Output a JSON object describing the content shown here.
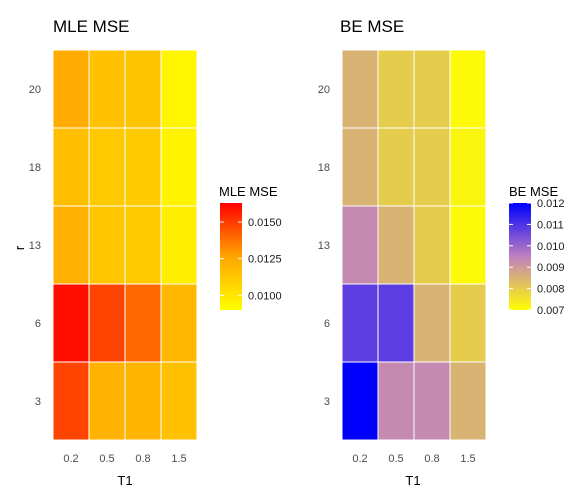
{
  "chart_data": [
    {
      "type": "heatmap",
      "title": "MLE MSE",
      "xlabel": "T1",
      "ylabel": "r",
      "x_categories": [
        "0.2",
        "0.5",
        "0.8",
        "1.5"
      ],
      "y_categories": [
        "3",
        "6",
        "13",
        "18",
        "20"
      ],
      "values": [
        [
          0.0148,
          0.0121,
          0.012,
          0.0115
        ],
        [
          0.016,
          0.0148,
          0.014,
          0.0119
        ],
        [
          0.0122,
          0.0113,
          0.0111,
          0.0097
        ],
        [
          0.0116,
          0.0112,
          0.0111,
          0.0095
        ],
        [
          0.0124,
          0.0115,
          0.0114,
          0.0094
        ]
      ],
      "legend": {
        "title": "MLE MSE",
        "range": [
          0.009,
          0.0163
        ],
        "ticks": [
          0.01,
          0.0125,
          0.015
        ],
        "tick_labels": [
          "0.0100",
          "0.0125",
          "0.0150"
        ],
        "colors": [
          "#ffff00",
          "#ffa500",
          "#ff0000"
        ]
      }
    },
    {
      "type": "heatmap",
      "title": "BE MSE",
      "xlabel": "T1",
      "ylabel": "",
      "x_categories": [
        "0.2",
        "0.5",
        "0.8",
        "1.5"
      ],
      "y_categories": [
        "3",
        "6",
        "13",
        "18",
        "20"
      ],
      "values": [
        [
          0.012,
          0.0093,
          0.0093,
          0.0085
        ],
        [
          0.0108,
          0.0108,
          0.0085,
          0.008
        ],
        [
          0.0093,
          0.0085,
          0.008,
          0.0071
        ],
        [
          0.0085,
          0.008,
          0.008,
          0.0072
        ],
        [
          0.0085,
          0.008,
          0.008,
          0.0071
        ]
      ],
      "legend": {
        "title": "BE MSE",
        "range": [
          0.007,
          0.012
        ],
        "ticks": [
          0.007,
          0.008,
          0.009,
          0.01,
          0.011,
          0.012
        ],
        "tick_labels": [
          "0.007",
          "0.008",
          "0.009",
          "0.010",
          "0.011",
          "0.012"
        ],
        "colors": [
          "#ffff00",
          "#c080c0",
          "#0000ff"
        ]
      }
    }
  ]
}
